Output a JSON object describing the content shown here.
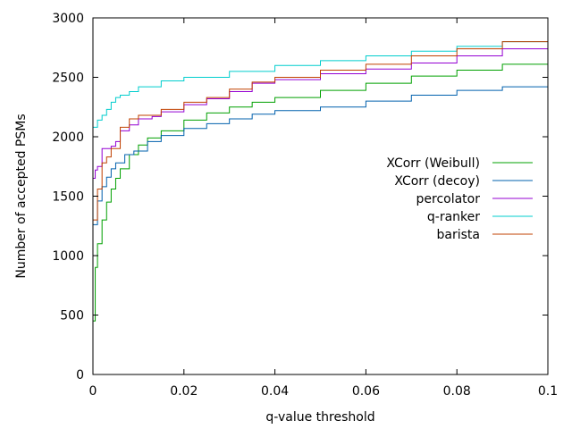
{
  "chart_data": {
    "type": "line",
    "xlabel": "q-value threshold",
    "ylabel": "Number of accepted PSMs",
    "xlim": [
      0,
      0.1
    ],
    "ylim": [
      0,
      3000
    ],
    "xticks": [
      0,
      0.02,
      0.04,
      0.06,
      0.08,
      0.1
    ],
    "xtick_labels": [
      "0",
      "0.02",
      "0.04",
      "0.06",
      "0.08",
      "0.1"
    ],
    "yticks": [
      0,
      500,
      1000,
      1500,
      2000,
      2500,
      3000
    ],
    "ytick_labels": [
      "0",
      "500",
      "1000",
      "1500",
      "2000",
      "2500",
      "3000"
    ],
    "grid": false,
    "legend_position": "right-center",
    "series": [
      {
        "name": "XCorr (Weibull)",
        "color": "#00a000",
        "points": [
          [
            0,
            450
          ],
          [
            0.0005,
            900
          ],
          [
            0.001,
            1100
          ],
          [
            0.002,
            1300
          ],
          [
            0.003,
            1450
          ],
          [
            0.004,
            1560
          ],
          [
            0.005,
            1650
          ],
          [
            0.006,
            1730
          ],
          [
            0.008,
            1850
          ],
          [
            0.01,
            1930
          ],
          [
            0.012,
            1990
          ],
          [
            0.015,
            2050
          ],
          [
            0.02,
            2140
          ],
          [
            0.025,
            2200
          ],
          [
            0.03,
            2250
          ],
          [
            0.035,
            2290
          ],
          [
            0.04,
            2330
          ],
          [
            0.05,
            2390
          ],
          [
            0.06,
            2450
          ],
          [
            0.07,
            2510
          ],
          [
            0.08,
            2560
          ],
          [
            0.09,
            2610
          ],
          [
            0.1,
            2650
          ]
        ]
      },
      {
        "name": "XCorr (decoy)",
        "color": "#0060ad",
        "points": [
          [
            0,
            1260
          ],
          [
            0.001,
            1460
          ],
          [
            0.002,
            1580
          ],
          [
            0.003,
            1660
          ],
          [
            0.004,
            1730
          ],
          [
            0.005,
            1780
          ],
          [
            0.007,
            1850
          ],
          [
            0.009,
            1880
          ],
          [
            0.012,
            1960
          ],
          [
            0.015,
            2010
          ],
          [
            0.02,
            2070
          ],
          [
            0.025,
            2110
          ],
          [
            0.03,
            2150
          ],
          [
            0.035,
            2190
          ],
          [
            0.04,
            2220
          ],
          [
            0.05,
            2250
          ],
          [
            0.06,
            2300
          ],
          [
            0.07,
            2350
          ],
          [
            0.08,
            2390
          ],
          [
            0.09,
            2420
          ],
          [
            0.1,
            2460
          ]
        ]
      },
      {
        "name": "percolator",
        "color": "#9400d3",
        "points": [
          [
            0,
            1650
          ],
          [
            0.0005,
            1720
          ],
          [
            0.001,
            1750
          ],
          [
            0.002,
            1900
          ],
          [
            0.004,
            1920
          ],
          [
            0.005,
            1960
          ],
          [
            0.006,
            2050
          ],
          [
            0.008,
            2100
          ],
          [
            0.01,
            2150
          ],
          [
            0.013,
            2170
          ],
          [
            0.015,
            2210
          ],
          [
            0.02,
            2270
          ],
          [
            0.025,
            2320
          ],
          [
            0.03,
            2380
          ],
          [
            0.035,
            2450
          ],
          [
            0.04,
            2480
          ],
          [
            0.05,
            2530
          ],
          [
            0.06,
            2570
          ],
          [
            0.07,
            2620
          ],
          [
            0.08,
            2680
          ],
          [
            0.09,
            2740
          ],
          [
            0.1,
            2830
          ]
        ]
      },
      {
        "name": "q-ranker",
        "color": "#00cdcd",
        "points": [
          [
            0,
            2080
          ],
          [
            0.001,
            2140
          ],
          [
            0.002,
            2180
          ],
          [
            0.003,
            2230
          ],
          [
            0.004,
            2290
          ],
          [
            0.005,
            2330
          ],
          [
            0.006,
            2350
          ],
          [
            0.008,
            2380
          ],
          [
            0.01,
            2420
          ],
          [
            0.015,
            2470
          ],
          [
            0.02,
            2500
          ],
          [
            0.03,
            2550
          ],
          [
            0.04,
            2600
          ],
          [
            0.05,
            2640
          ],
          [
            0.06,
            2680
          ],
          [
            0.07,
            2720
          ],
          [
            0.08,
            2760
          ],
          [
            0.09,
            2800
          ],
          [
            0.1,
            2860
          ]
        ]
      },
      {
        "name": "barista",
        "color": "#c04000",
        "points": [
          [
            0,
            1300
          ],
          [
            0.001,
            1560
          ],
          [
            0.002,
            1780
          ],
          [
            0.003,
            1830
          ],
          [
            0.004,
            1900
          ],
          [
            0.006,
            2080
          ],
          [
            0.008,
            2150
          ],
          [
            0.01,
            2180
          ],
          [
            0.015,
            2230
          ],
          [
            0.02,
            2290
          ],
          [
            0.025,
            2330
          ],
          [
            0.03,
            2400
          ],
          [
            0.035,
            2460
          ],
          [
            0.04,
            2500
          ],
          [
            0.05,
            2560
          ],
          [
            0.06,
            2610
          ],
          [
            0.07,
            2680
          ],
          [
            0.08,
            2740
          ],
          [
            0.09,
            2800
          ],
          [
            0.1,
            2880
          ]
        ]
      }
    ]
  }
}
